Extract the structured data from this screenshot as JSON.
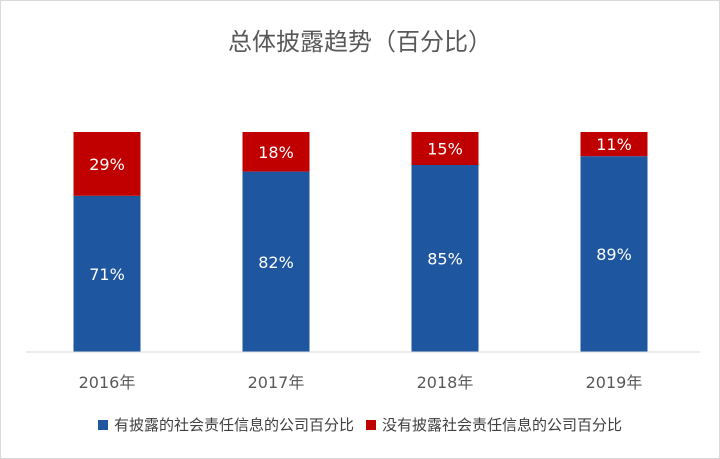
{
  "chart_data": {
    "type": "bar",
    "stacked": true,
    "percent": true,
    "title": "总体披露趋势（百分比）",
    "categories": [
      "2016年",
      "2017年",
      "2018年",
      "2019年"
    ],
    "series": [
      {
        "name": "有披露的社会责任信息的公司百分比",
        "values": [
          71,
          82,
          85,
          89
        ],
        "labels": [
          "71%",
          "82%",
          "85%",
          "89%"
        ],
        "color": "#1f56a0"
      },
      {
        "name": "没有披露社会责任信息的公司百分比",
        "values": [
          29,
          18,
          15,
          11
        ],
        "labels": [
          "29%",
          "18%",
          "15%",
          "11%"
        ],
        "color": "#c00000"
      }
    ],
    "ylim": [
      0,
      100
    ],
    "grid": false,
    "legend": "bottom"
  }
}
